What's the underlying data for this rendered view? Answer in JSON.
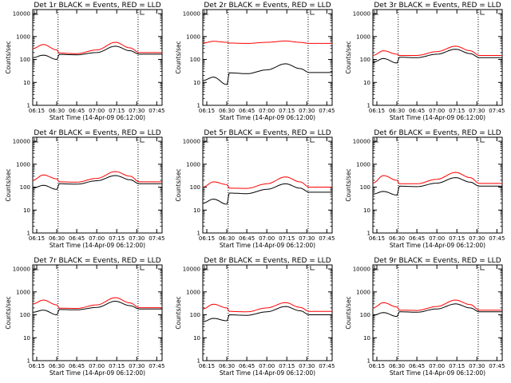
{
  "x_label": "Start Time (14-Apr-09 06:12:00)",
  "y_label": "Counts/sec",
  "x_ticks": [
    "06:15",
    "06:30",
    "06:45",
    "07:00",
    "07:15",
    "07:30",
    "07:45"
  ],
  "y_ticks": [
    "1",
    "10",
    "100",
    "1000",
    "10000"
  ],
  "colors": {
    "events": "#000000",
    "lld": "#ff0000",
    "axes": "#000000"
  },
  "chart_data": [
    {
      "type": "line",
      "title": "Det 1r BLACK = Events, RED = LLD",
      "ylim": [
        1,
        15000
      ],
      "yscale": "log",
      "x_range": [
        "06:12",
        "07:49"
      ],
      "markers": [
        "06:31",
        "07:31"
      ],
      "x": [
        "06:12",
        "06:20",
        "06:30",
        "06:32",
        "06:45",
        "07:00",
        "07:14",
        "07:25",
        "07:32",
        "07:49"
      ],
      "series": [
        {
          "values": [
            120,
            155,
            100,
            165,
            160,
            200,
            380,
            240,
            170,
            170
          ]
        },
        {
          "values": [
            300,
            450,
            260,
            190,
            180,
            260,
            560,
            320,
            200,
            200
          ]
        }
      ]
    },
    {
      "type": "line",
      "title": "Det 2r BLACK = Events, RED = LLD",
      "ylim": [
        1,
        15000
      ],
      "yscale": "log",
      "x_range": [
        "06:12",
        "07:49"
      ],
      "markers": [
        "06:31",
        "07:31"
      ],
      "x": [
        "06:12",
        "06:20",
        "06:30",
        "06:32",
        "06:45",
        "07:00",
        "07:14",
        "07:25",
        "07:32",
        "07:49"
      ],
      "series": [
        {
          "values": [
            12,
            17,
            8,
            26,
            24,
            35,
            65,
            40,
            27,
            27
          ]
        },
        {
          "values": [
            520,
            620,
            560,
            520,
            500,
            560,
            640,
            560,
            500,
            500
          ]
        }
      ]
    },
    {
      "type": "line",
      "title": "Det 3r BLACK = Events, RED = LLD",
      "ylim": [
        1,
        15000
      ],
      "yscale": "log",
      "x_range": [
        "06:12",
        "07:49"
      ],
      "markers": [
        "06:31",
        "07:31"
      ],
      "x": [
        "06:12",
        "06:20",
        "06:30",
        "06:32",
        "06:45",
        "07:00",
        "07:14",
        "07:25",
        "07:32",
        "07:49"
      ],
      "series": [
        {
          "values": [
            75,
            110,
            70,
            125,
            120,
            170,
            280,
            180,
            120,
            120
          ]
        },
        {
          "values": [
            150,
            240,
            170,
            150,
            150,
            220,
            380,
            240,
            150,
            150
          ]
        }
      ]
    },
    {
      "type": "line",
      "title": "Det 4r BLACK = Events, RED = LLD",
      "ylim": [
        1,
        15000
      ],
      "yscale": "log",
      "x_range": [
        "06:12",
        "07:49"
      ],
      "markers": [
        "06:31",
        "07:31"
      ],
      "x": [
        "06:12",
        "06:20",
        "06:30",
        "06:32",
        "06:45",
        "07:00",
        "07:14",
        "07:25",
        "07:32",
        "07:49"
      ],
      "series": [
        {
          "values": [
            90,
            120,
            80,
            140,
            135,
            190,
            320,
            210,
            140,
            140
          ]
        },
        {
          "values": [
            200,
            340,
            230,
            170,
            165,
            240,
            480,
            300,
            170,
            170
          ]
        }
      ]
    },
    {
      "type": "line",
      "title": "Det 5r BLACK = Events, RED = LLD",
      "ylim": [
        1,
        15000
      ],
      "yscale": "log",
      "x_range": [
        "06:12",
        "07:49"
      ],
      "markers": [
        "06:31",
        "07:31"
      ],
      "x": [
        "06:12",
        "06:20",
        "06:30",
        "06:32",
        "06:45",
        "07:00",
        "07:14",
        "07:25",
        "07:32",
        "07:49"
      ],
      "series": [
        {
          "values": [
            20,
            30,
            18,
            55,
            52,
            80,
            140,
            90,
            60,
            60
          ]
        },
        {
          "values": [
            100,
            170,
            130,
            90,
            88,
            140,
            280,
            170,
            100,
            100
          ]
        }
      ]
    },
    {
      "type": "line",
      "title": "Det 6r BLACK = Events, RED = LLD",
      "ylim": [
        1,
        15000
      ],
      "yscale": "log",
      "x_range": [
        "06:12",
        "07:49"
      ],
      "markers": [
        "06:31",
        "07:31"
      ],
      "x": [
        "06:12",
        "06:20",
        "06:30",
        "06:32",
        "06:45",
        "07:00",
        "07:14",
        "07:25",
        "07:32",
        "07:49"
      ],
      "series": [
        {
          "values": [
            50,
            65,
            45,
            110,
            105,
            150,
            260,
            165,
            110,
            110
          ]
        },
        {
          "values": [
            150,
            320,
            200,
            140,
            140,
            220,
            440,
            260,
            145,
            145
          ]
        }
      ]
    },
    {
      "type": "line",
      "title": "Det 7r BLACK = Events, RED = LLD",
      "ylim": [
        1,
        15000
      ],
      "yscale": "log",
      "x_range": [
        "06:12",
        "07:49"
      ],
      "markers": [
        "06:31",
        "07:31"
      ],
      "x": [
        "06:12",
        "06:20",
        "06:30",
        "06:32",
        "06:45",
        "07:00",
        "07:14",
        "07:25",
        "07:32",
        "07:49"
      ],
      "series": [
        {
          "values": [
            130,
            160,
            100,
            170,
            165,
            210,
            390,
            250,
            180,
            180
          ]
        },
        {
          "values": [
            300,
            440,
            270,
            195,
            190,
            270,
            560,
            330,
            205,
            205
          ]
        }
      ]
    },
    {
      "type": "line",
      "title": "Det 8r BLACK = Events, RED = LLD",
      "ylim": [
        1,
        15000
      ],
      "yscale": "log",
      "x_range": [
        "06:12",
        "07:49"
      ],
      "markers": [
        "06:31",
        "07:31"
      ],
      "x": [
        "06:12",
        "06:20",
        "06:30",
        "06:32",
        "06:45",
        "07:00",
        "07:14",
        "07:25",
        "07:32",
        "07:49"
      ],
      "series": [
        {
          "values": [
            50,
            70,
            55,
            100,
            95,
            135,
            230,
            150,
            100,
            100
          ]
        },
        {
          "values": [
            180,
            290,
            200,
            140,
            135,
            200,
            340,
            210,
            140,
            140
          ]
        }
      ]
    },
    {
      "type": "line",
      "title": "Det 9r BLACK = Events, RED = LLD",
      "ylim": [
        1,
        15000
      ],
      "yscale": "log",
      "x_range": [
        "06:12",
        "07:49"
      ],
      "markers": [
        "06:31",
        "07:31"
      ],
      "x": [
        "06:12",
        "06:20",
        "06:30",
        "06:32",
        "06:45",
        "07:00",
        "07:14",
        "07:25",
        "07:32",
        "07:49"
      ],
      "series": [
        {
          "values": [
            95,
            125,
            85,
            135,
            130,
            180,
            300,
            200,
            135,
            135
          ]
        },
        {
          "values": [
            200,
            340,
            220,
            160,
            155,
            230,
            440,
            280,
            160,
            160
          ]
        }
      ]
    }
  ]
}
